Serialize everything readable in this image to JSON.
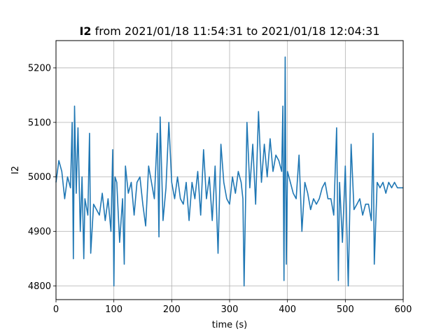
{
  "chart_data": {
    "type": "line",
    "title_bold": "I2",
    "title_rest": " from 2021/01/18 11:54:31 to 2021/01/18 12:04:31",
    "xlabel": "time (s)",
    "ylabel": "I2",
    "xlim": [
      0,
      600
    ],
    "ylim": [
      4775,
      5250
    ],
    "xticks": [
      0,
      100,
      200,
      300,
      400,
      500,
      600
    ],
    "yticks": [
      4800,
      4900,
      5000,
      5100,
      5200
    ],
    "grid": true,
    "line_color": "#1f77b4",
    "series": [
      {
        "x": [
          0,
          5,
          10,
          15,
          20,
          25,
          28,
          30,
          32,
          35,
          38,
          42,
          45,
          48,
          50,
          55,
          58,
          60,
          65,
          70,
          75,
          80,
          85,
          90,
          95,
          98,
          100,
          102,
          105,
          110,
          115,
          118,
          120,
          125,
          130,
          135,
          140,
          145,
          150,
          155,
          160,
          165,
          170,
          175,
          178,
          180,
          185,
          190,
          195,
          200,
          205,
          210,
          215,
          220,
          225,
          230,
          235,
          240,
          245,
          250,
          255,
          260,
          265,
          270,
          275,
          280,
          285,
          290,
          295,
          300,
          305,
          310,
          315,
          320,
          323,
          325,
          330,
          335,
          340,
          345,
          350,
          355,
          360,
          365,
          370,
          375,
          380,
          385,
          390,
          392,
          394,
          396,
          398,
          400,
          405,
          410,
          415,
          420,
          425,
          430,
          435,
          440,
          445,
          450,
          455,
          460,
          465,
          470,
          475,
          480,
          485,
          488,
          490,
          495,
          500,
          505,
          510,
          515,
          520,
          525,
          530,
          535,
          540,
          545,
          548,
          550,
          555,
          560,
          565,
          570,
          575,
          580,
          585,
          590,
          595,
          600
        ],
        "y": [
          4990,
          5030,
          5010,
          4960,
          5000,
          4980,
          5100,
          4850,
          5130,
          4970,
          5090,
          4900,
          5000,
          4850,
          4960,
          4930,
          5080,
          4860,
          4950,
          4940,
          4930,
          4970,
          4920,
          4960,
          4900,
          5050,
          4800,
          5000,
          4990,
          4880,
          4960,
          4840,
          5020,
          4970,
          4990,
          4930,
          4990,
          5000,
          4950,
          4910,
          5020,
          4990,
          4960,
          5080,
          4890,
          5110,
          4920,
          4980,
          5100,
          4990,
          4960,
          5000,
          4960,
          4950,
          4990,
          4920,
          4990,
          4960,
          5010,
          4930,
          5050,
          4960,
          5000,
          4920,
          5020,
          4860,
          5060,
          4990,
          4960,
          4950,
          5000,
          4970,
          5010,
          4990,
          4960,
          4800,
          5100,
          4980,
          5060,
          4950,
          5120,
          4990,
          5060,
          5000,
          5070,
          5010,
          5040,
          5030,
          5010,
          5130,
          4810,
          5220,
          4840,
          5010,
          4990,
          4970,
          4960,
          5040,
          4900,
          4990,
          4970,
          4940,
          4960,
          4950,
          4960,
          4980,
          4990,
          4960,
          4960,
          4930,
          5090,
          4810,
          4990,
          4880,
          5020,
          4800,
          5060,
          4940,
          4950,
          4960,
          4930,
          4950,
          4950,
          4920,
          5080,
          4840,
          4990,
          4980,
          4990,
          4970,
          4990,
          4980,
          4990,
          4980,
          4980,
          4980
        ]
      }
    ]
  }
}
